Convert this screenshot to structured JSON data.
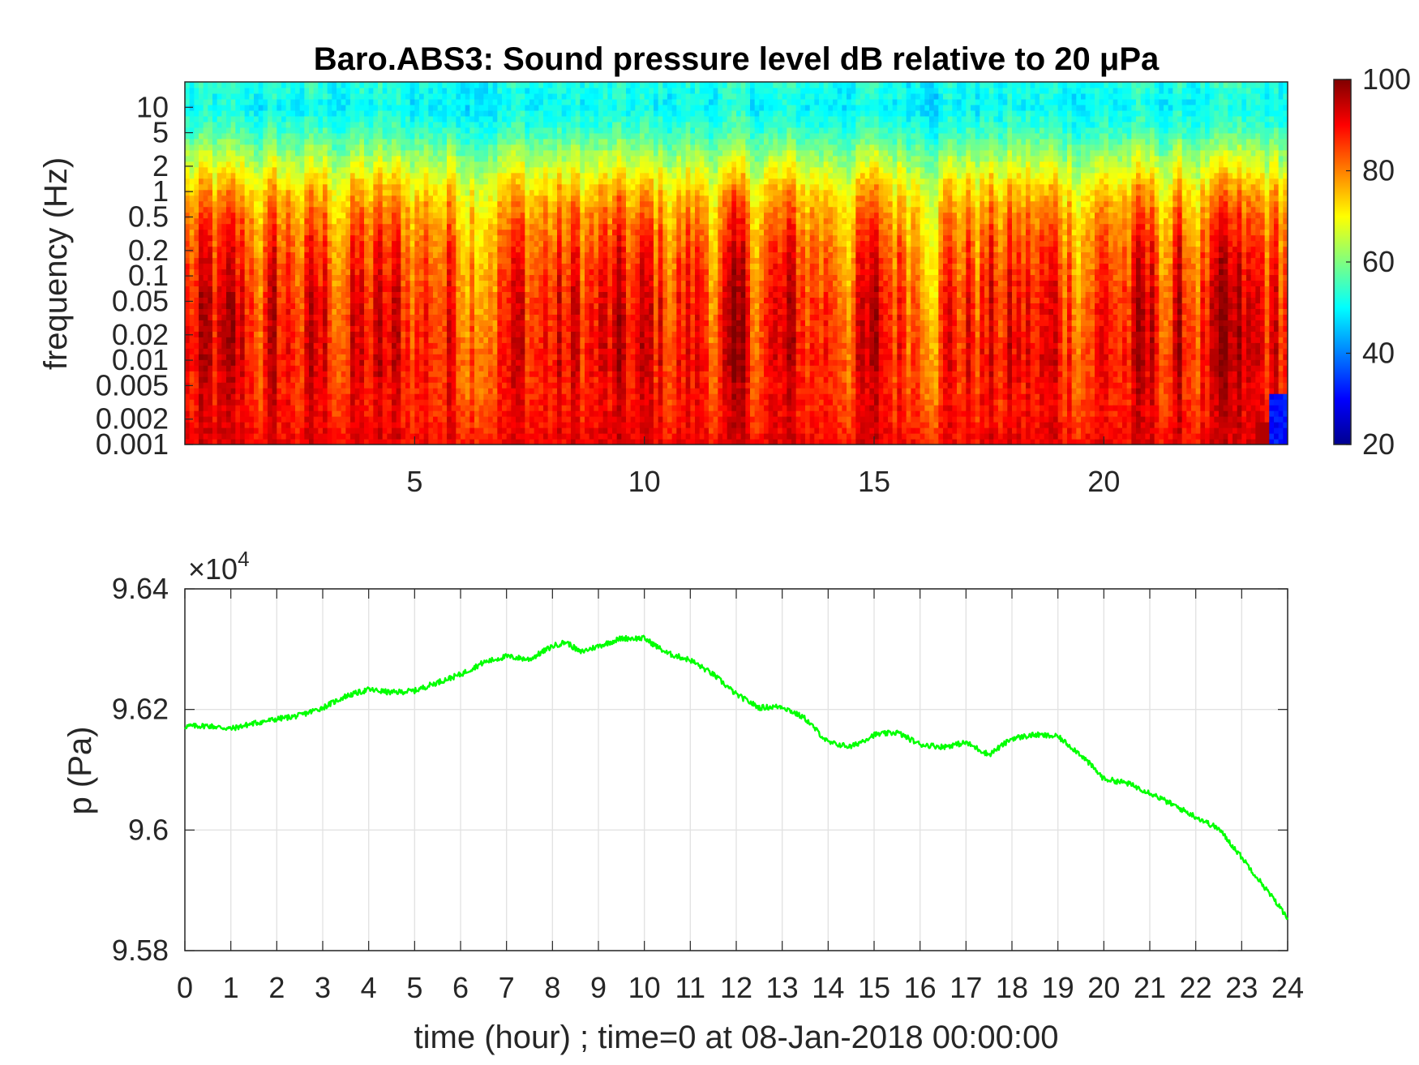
{
  "chart_data": [
    {
      "type": "heatmap",
      "title": "Baro.ABS3: Sound pressure level dB relative to 20 μPa",
      "xlabel": "",
      "ylabel": "frequency (Hz)",
      "x_ticks": [
        "5",
        "10",
        "15",
        "20"
      ],
      "x_tick_values": [
        5,
        10,
        15,
        20
      ],
      "xlim": [
        0,
        24
      ],
      "y_scale": "log",
      "y_ticks": [
        "10",
        "5",
        "2",
        "1",
        "0.5",
        "0.2",
        "0.1",
        "0.05",
        "0.02",
        "0.01",
        "0.005",
        "0.002",
        "0.001"
      ],
      "y_tick_values": [
        10,
        5,
        2,
        1,
        0.5,
        0.2,
        0.1,
        0.05,
        0.02,
        0.01,
        0.005,
        0.002,
        0.001
      ],
      "ylim": [
        0.001,
        20
      ],
      "colormap": "jet",
      "colorbar": {
        "ticks": [
          "100",
          "80",
          "60",
          "40",
          "20"
        ],
        "tick_values": [
          100,
          80,
          60,
          40,
          20
        ],
        "range": [
          20,
          100
        ]
      },
      "level_profile_db": {
        "frequency_hz": [
          20,
          10,
          5,
          2,
          1,
          0.5,
          0.2,
          0.1,
          0.05,
          0.02,
          0.01,
          0.005,
          0.002,
          0.001
        ],
        "level_db": [
          52,
          50,
          55,
          66,
          74,
          79,
          83,
          85,
          87,
          88,
          89,
          88,
          89,
          91
        ]
      }
    },
    {
      "type": "line",
      "xlabel": "time (hour) ; time=0 at 08-Jan-2018 00:00:00",
      "ylabel": "p (Pa)",
      "y_multiplier": "×10",
      "y_multiplier_exp": "4",
      "x_ticks": [
        "0",
        "1",
        "2",
        "3",
        "4",
        "5",
        "6",
        "7",
        "8",
        "9",
        "10",
        "11",
        "12",
        "13",
        "14",
        "15",
        "16",
        "17",
        "18",
        "19",
        "20",
        "21",
        "22",
        "23",
        "24"
      ],
      "xlim": [
        0,
        24
      ],
      "y_ticks": [
        "9.64",
        "9.62",
        "9.6",
        "9.58"
      ],
      "y_tick_values": [
        9.64,
        9.62,
        9.6,
        9.58
      ],
      "ylim": [
        9.58,
        9.64
      ],
      "grid": true,
      "series": [
        {
          "color": "#00ff00",
          "x": [
            0,
            0.5,
            1,
            1.5,
            2,
            2.5,
            3,
            3.5,
            4,
            4.5,
            5,
            5.5,
            6,
            6.5,
            7,
            7.5,
            8,
            8.3,
            8.6,
            9,
            9.5,
            10,
            10.5,
            11,
            11.5,
            12,
            12.5,
            13,
            13.5,
            14,
            14.5,
            15,
            15.5,
            16,
            16.5,
            17,
            17.5,
            18,
            18.5,
            19,
            19.5,
            20,
            20.5,
            21,
            21.5,
            22,
            22.5,
            23,
            23.5,
            24
          ],
          "y": [
            9.6172,
            9.6173,
            9.6168,
            9.6177,
            9.6184,
            9.619,
            9.6203,
            9.6222,
            9.6233,
            9.6228,
            9.6231,
            9.6245,
            9.6258,
            9.6278,
            9.6288,
            9.6283,
            9.6305,
            9.6312,
            9.6295,
            9.6305,
            9.6318,
            9.6318,
            9.6293,
            9.6282,
            9.6258,
            9.6225,
            9.6203,
            9.6205,
            9.6185,
            9.6145,
            9.6138,
            9.6158,
            9.6162,
            9.6142,
            9.6138,
            9.6145,
            9.6125,
            9.6152,
            9.6158,
            9.6155,
            9.6125,
            9.6085,
            9.6078,
            9.6062,
            9.6042,
            9.6022,
            9.6002,
            9.5955,
            9.5905,
            9.5855
          ]
        }
      ]
    }
  ]
}
